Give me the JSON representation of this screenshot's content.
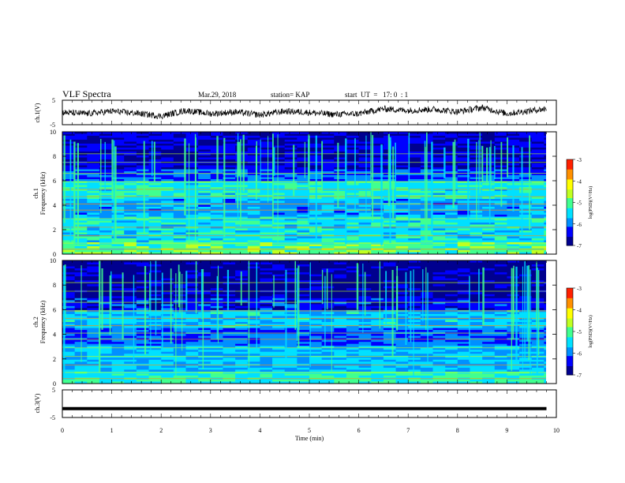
{
  "header": {
    "title": "VLF Spectra",
    "date": "Mar.29, 2018",
    "station": "station= KAP",
    "start": "start  UT  =   17: 0  : 1"
  },
  "chart_data": [
    {
      "type": "line",
      "panel": "ch1-waveform",
      "ylabel": "ch.1(V)",
      "xlim": [
        0,
        10
      ],
      "ylim": [
        -5,
        5
      ],
      "yticks": [
        "5",
        "-5"
      ],
      "series": [
        {
          "x": [
            0,
            0.5,
            1,
            1.5,
            2,
            2.5,
            3,
            3.5,
            4,
            4.5,
            5,
            5.5,
            6,
            6.5,
            7,
            7.5,
            8,
            8.5,
            9,
            9.5,
            9.8
          ],
          "values": [
            0,
            -0.5,
            0.5,
            -0.3,
            -1.5,
            0.8,
            -0.5,
            0.2,
            -1,
            0.5,
            0,
            -0.8,
            -0.5,
            1.5,
            0.8,
            1.3,
            0.3,
            2,
            -0.5,
            0.8,
            1.5
          ]
        }
      ]
    },
    {
      "type": "heatmap",
      "panel": "ch1-spectrogram",
      "ylabel": "ch.1\nFrequency  (kHz)",
      "xlim": [
        0,
        10
      ],
      "ylim": [
        0,
        10
      ],
      "yticks": [
        "0",
        "2",
        "4",
        "6",
        "8",
        "10"
      ],
      "colorbar": {
        "label": "log(PSD)(V²/Hz)",
        "range": [
          -7,
          -3
        ],
        "ticks": [
          "-3",
          "-4",
          "-5",
          "-6",
          "-7"
        ]
      }
    },
    {
      "type": "heatmap",
      "panel": "ch2-spectrogram",
      "ylabel": "ch.2\nFrequency  (kHz)",
      "xlim": [
        0,
        10
      ],
      "ylim": [
        0,
        10
      ],
      "yticks": [
        "0",
        "2",
        "4",
        "6",
        "8",
        "10"
      ],
      "colorbar": {
        "label": "log(PSD)(V²/Hz)",
        "range": [
          -7,
          -3
        ],
        "ticks": [
          "-3",
          "-4",
          "-5",
          "-6",
          "-7"
        ]
      }
    },
    {
      "type": "line",
      "panel": "ch3-waveform",
      "ylabel": "ch.3(V)",
      "xlabel": "Time  (min)",
      "xlim": [
        0,
        10
      ],
      "ylim": [
        -5,
        5
      ],
      "xticks": [
        "0",
        "1",
        "2",
        "3",
        "4",
        "5",
        "6",
        "7",
        "8",
        "9",
        "10"
      ],
      "yticks": [
        "5",
        "-5"
      ],
      "series": [
        {
          "x": [
            0,
            9.8
          ],
          "values": [
            -1.8,
            -1.8
          ]
        }
      ]
    }
  ],
  "colors": {
    "line": "#000000",
    "colormap": [
      "#00008f",
      "#0000ff",
      "#0090ff",
      "#00e0ff",
      "#40ff90",
      "#c0ff20",
      "#ffff00",
      "#ff9000",
      "#ff2000",
      "#ffffff"
    ]
  }
}
